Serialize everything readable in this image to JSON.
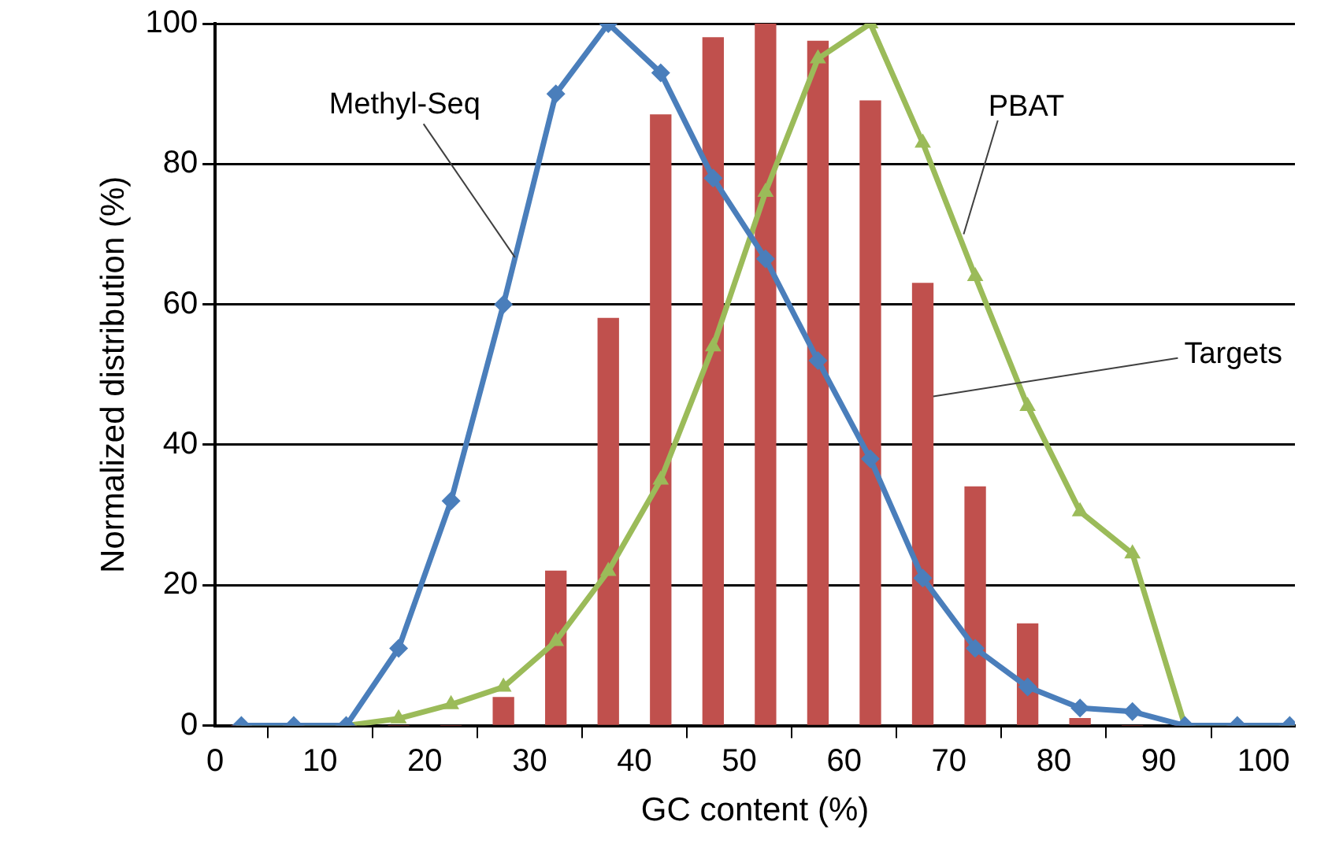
{
  "chart_data": {
    "type": "line",
    "xlabel": "GC content (%)",
    "ylabel": "Normalized distribution (%)",
    "x": [
      2.5,
      7.5,
      12.5,
      17.5,
      22.5,
      27.5,
      32.5,
      37.5,
      42.5,
      47.5,
      52.5,
      57.5,
      62.5,
      67.5,
      72.5,
      77.5,
      82.5,
      87.5,
      92.5,
      97.5,
      102.5
    ],
    "series": [
      {
        "name": "Targets",
        "type": "bar",
        "color": "#c0504d",
        "values": [
          0,
          0,
          0,
          0,
          0,
          4,
          22,
          58,
          87,
          98,
          100,
          97.5,
          89,
          63,
          34,
          14.5,
          1,
          0,
          0,
          0,
          0
        ]
      },
      {
        "name": "Methyl-Seq",
        "color": "#4a7ebb",
        "marker": "diamond",
        "values": [
          0,
          0,
          0,
          11,
          32,
          60,
          90,
          100,
          93,
          78,
          66.5,
          52,
          38,
          21,
          11,
          5.5,
          2.5,
          2,
          0,
          0,
          0
        ]
      },
      {
        "name": "PBAT",
        "color": "#9bbb59",
        "marker": "triangle",
        "values": [
          0,
          0,
          0,
          1,
          3,
          5.5,
          12,
          22,
          35,
          54,
          76,
          95,
          100,
          83,
          64,
          45.5,
          30.5,
          24.5,
          0,
          0,
          0
        ]
      }
    ],
    "xlim": [
      0,
      103
    ],
    "xticks": [
      0,
      10,
      20,
      30,
      40,
      50,
      60,
      70,
      80,
      90,
      100
    ],
    "ylim": [
      0,
      100
    ],
    "yticks": [
      0,
      20,
      40,
      60,
      80,
      100
    ],
    "grid": "y",
    "legend": false
  }
}
